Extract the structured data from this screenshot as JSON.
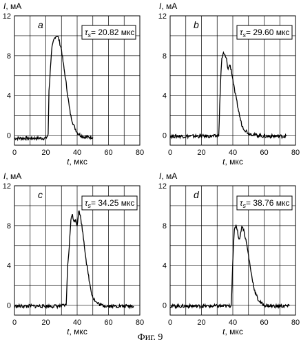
{
  "caption": "Фиг. 9",
  "axis_labels": {
    "y_symbol": "I",
    "y_unit": ", мА",
    "x_symbol": "t",
    "x_unit": ",  мкс"
  },
  "panels": [
    {
      "letter": "a",
      "tau_symbol": "τ",
      "tau_sub": "s",
      "tau_text": "= 20.82 мкс"
    },
    {
      "letter": "b",
      "tau_symbol": "τ",
      "tau_sub": "s",
      "tau_text": "= 29.60 мкс"
    },
    {
      "letter": "c",
      "tau_symbol": "τ",
      "tau_sub": "s",
      "tau_text": "= 34.25 мкс"
    },
    {
      "letter": "d",
      "tau_symbol": "τ",
      "tau_sub": "s",
      "tau_text": "= 38.76 мкс"
    }
  ],
  "chart_data": [
    {
      "type": "line",
      "xlabel": "t, мкс",
      "ylabel": "I, мА",
      "xlim": [
        0,
        80
      ],
      "ylim": [
        -1,
        12
      ],
      "xticks": [
        0,
        20,
        40,
        60,
        80
      ],
      "yticks": [
        0,
        4,
        8,
        12
      ],
      "grid": true,
      "annotation": "τs = 20.82 мкс",
      "x": [
        0,
        10,
        20,
        21.5,
        22,
        22.5,
        23,
        23.5,
        24,
        25,
        26,
        27,
        28,
        29,
        30,
        31,
        32,
        33,
        34,
        35,
        36,
        38,
        40,
        42,
        45,
        50
      ],
      "y": [
        -0.3,
        -0.3,
        -0.3,
        0,
        4.5,
        5.5,
        7.0,
        8.0,
        8.8,
        9.5,
        9.9,
        10.0,
        9.8,
        9.2,
        8.6,
        7.4,
        6.3,
        5.2,
        4.0,
        2.8,
        1.9,
        0.9,
        0.3,
        0,
        -0.2,
        -0.2
      ]
    },
    {
      "type": "line",
      "xlabel": "t, мкс",
      "ylabel": "I, мА",
      "xlim": [
        0,
        80
      ],
      "ylim": [
        -1,
        12
      ],
      "xticks": [
        0,
        20,
        40,
        60,
        80
      ],
      "yticks": [
        0,
        4,
        8,
        12
      ],
      "grid": true,
      "annotation": "τs = 29.60 мкс",
      "x": [
        0,
        10,
        20,
        30,
        31,
        32,
        32.5,
        33,
        34,
        35,
        36,
        37,
        38,
        39,
        40,
        41,
        42,
        43,
        44,
        45,
        46,
        48,
        50,
        55,
        60,
        70,
        74
      ],
      "y": [
        -0.1,
        -0.1,
        -0.1,
        -0.1,
        0,
        4.5,
        6.5,
        7.7,
        8.2,
        8.0,
        7.6,
        6.6,
        7.1,
        6.6,
        5.6,
        4.6,
        3.8,
        3.0,
        2.2,
        1.5,
        0.9,
        0.5,
        0.2,
        0,
        -0.1,
        -0.1,
        -0.1
      ]
    },
    {
      "type": "line",
      "xlabel": "t, мкс",
      "ylabel": "I, мА",
      "xlim": [
        0,
        80
      ],
      "ylim": [
        -1,
        12
      ],
      "xticks": [
        0,
        20,
        40,
        60,
        80
      ],
      "yticks": [
        0,
        4,
        8,
        12
      ],
      "grid": true,
      "annotation": "τs = 34.25 мкс",
      "x": [
        0,
        10,
        20,
        30,
        33,
        34,
        35,
        36,
        37,
        38,
        39,
        40,
        41,
        42,
        43,
        44,
        45,
        46,
        47,
        48,
        49,
        50,
        52,
        55,
        60,
        70,
        76
      ],
      "y": [
        -0.1,
        -0.1,
        -0.1,
        -0.1,
        0,
        4.0,
        6.0,
        8.5,
        9.2,
        8.3,
        8.7,
        8.0,
        9.5,
        9.0,
        8.0,
        6.8,
        5.5,
        4.2,
        3.2,
        2.2,
        1.4,
        0.8,
        0.3,
        0,
        -0.1,
        -0.1,
        -0.1
      ]
    },
    {
      "type": "line",
      "xlabel": "t, мкс",
      "ylabel": "I, мА",
      "xlim": [
        0,
        80
      ],
      "ylim": [
        -1,
        12
      ],
      "xticks": [
        0,
        20,
        40,
        60,
        80
      ],
      "yticks": [
        0,
        4,
        8,
        12
      ],
      "grid": true,
      "annotation": "τs = 38.76 мкс",
      "x": [
        0,
        10,
        20,
        30,
        38,
        39,
        40,
        41,
        42,
        43,
        44,
        45,
        46,
        47,
        48,
        49,
        50,
        51,
        52,
        53,
        54,
        56,
        58,
        60,
        65,
        70,
        76
      ],
      "y": [
        -0.1,
        -0.1,
        -0.1,
        -0.1,
        -0.1,
        0,
        4.5,
        7.5,
        8.1,
        7.5,
        6.5,
        7.3,
        8.0,
        7.5,
        6.8,
        6.0,
        5.0,
        4.0,
        3.0,
        2.2,
        1.4,
        0.6,
        0.2,
        0,
        -0.1,
        -0.1,
        -0.1
      ]
    }
  ]
}
